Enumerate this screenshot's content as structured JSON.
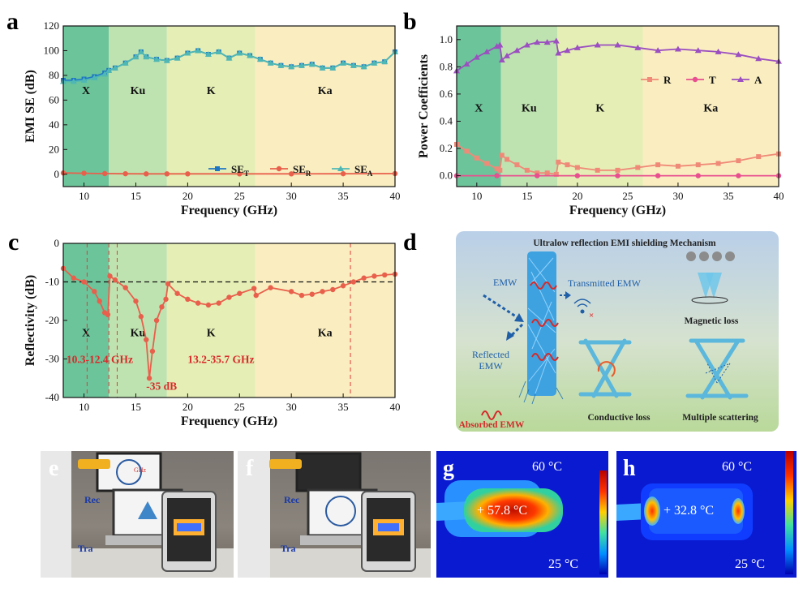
{
  "panel_letters": {
    "a": "a",
    "b": "b",
    "c": "c",
    "d": "d",
    "e": "e",
    "f": "f",
    "g": "g",
    "h": "h"
  },
  "chart_data": [
    {
      "id": "a",
      "type": "line",
      "xlabel": "Frequency (GHz)",
      "ylabel": "EMI SE (dB)",
      "xlim": [
        8,
        40
      ],
      "ylim": [
        -10,
        120
      ],
      "xticks": [
        10,
        15,
        20,
        25,
        30,
        35,
        40
      ],
      "yticks": [
        0,
        20,
        40,
        60,
        80,
        100,
        120
      ],
      "bands": [
        {
          "name": "X",
          "from": 8,
          "to": 12.4,
          "color": "#6cc49a"
        },
        {
          "name": "Ku",
          "from": 12.4,
          "to": 18,
          "color": "#bfe3b0"
        },
        {
          "name": "K",
          "from": 18,
          "to": 26.5,
          "color": "#e4eeb5"
        },
        {
          "name": "Ka",
          "from": 26.5,
          "to": 40,
          "color": "#faeec0"
        }
      ],
      "band_label_y": 68,
      "legend": {
        "position": "bottom-right",
        "items": [
          {
            "base": "SE",
            "sub": "T",
            "color": "#1f77c4",
            "marker": "square"
          },
          {
            "base": "SE",
            "sub": "R",
            "color": "#e8604c",
            "marker": "circle"
          },
          {
            "base": "SE",
            "sub": "A",
            "color": "#4fb8b4",
            "marker": "triangle"
          }
        ]
      },
      "series": [
        {
          "name": "SE_T",
          "color": "#1f77c4",
          "x": [
            8,
            9,
            10,
            11,
            12,
            12.4,
            13,
            14,
            15,
            15.5,
            16,
            17,
            18,
            19,
            20,
            21,
            22,
            23,
            24,
            25,
            26,
            27,
            28,
            29,
            30,
            31,
            32,
            33,
            34,
            35,
            36,
            37,
            38,
            39,
            40
          ],
          "y": [
            76,
            76,
            77,
            79,
            82,
            84,
            86,
            90,
            95,
            99,
            95,
            93,
            92,
            94,
            98,
            100,
            97,
            99,
            94,
            98,
            96,
            93,
            90,
            88,
            87,
            88,
            89,
            86,
            86,
            90,
            88,
            87,
            90,
            91,
            99
          ]
        },
        {
          "name": "SE_R",
          "color": "#e8604c",
          "x": [
            8,
            10,
            12,
            14,
            16,
            18,
            20,
            25,
            30,
            35,
            40
          ],
          "y": [
            1,
            0.8,
            0.5,
            0.4,
            0.3,
            0.3,
            0.3,
            0.3,
            0.3,
            0.4,
            0.5
          ]
        },
        {
          "name": "SE_A",
          "color": "#4fb8b4",
          "x": [
            8,
            9,
            10,
            11,
            12,
            12.4,
            13,
            14,
            15,
            15.5,
            16,
            17,
            18,
            19,
            20,
            21,
            22,
            23,
            24,
            25,
            26,
            27,
            28,
            29,
            30,
            31,
            32,
            33,
            34,
            35,
            36,
            37,
            38,
            39,
            40
          ],
          "y": [
            75,
            75,
            76,
            78,
            81,
            84,
            86,
            90,
            95,
            99,
            95,
            93,
            92,
            94,
            98,
            100,
            97,
            99,
            94,
            98,
            96,
            93,
            90,
            88,
            87,
            88,
            89,
            86,
            86,
            90,
            88,
            87,
            90,
            91,
            99
          ]
        }
      ]
    },
    {
      "id": "b",
      "type": "line",
      "xlabel": "Frequency (GHz)",
      "ylabel": "Power Coefficients",
      "xlim": [
        8,
        40
      ],
      "ylim": [
        -0.08,
        1.1
      ],
      "xticks": [
        10,
        15,
        20,
        25,
        30,
        35,
        40
      ],
      "yticks": [
        0.0,
        0.2,
        0.4,
        0.6,
        0.8,
        1.0
      ],
      "yformat": 1,
      "bands": [
        {
          "name": "X",
          "from": 8,
          "to": 12.4,
          "color": "#6cc49a"
        },
        {
          "name": "Ku",
          "from": 12.4,
          "to": 18,
          "color": "#bfe3b0"
        },
        {
          "name": "K",
          "from": 18,
          "to": 26.5,
          "color": "#e4eeb5"
        },
        {
          "name": "Ka",
          "from": 26.5,
          "to": 40,
          "color": "#faeec0"
        }
      ],
      "band_label_y": 0.5,
      "legend": {
        "position": "middle-right",
        "items": [
          {
            "base": "R",
            "sub": "",
            "color": "#f08a78",
            "marker": "square"
          },
          {
            "base": "T",
            "sub": "",
            "color": "#e84f8f",
            "marker": "circle"
          },
          {
            "base": "A",
            "sub": "",
            "color": "#9b4fc0",
            "marker": "triangle"
          }
        ]
      },
      "series": [
        {
          "name": "R",
          "color": "#f08a78",
          "x": [
            8,
            9,
            10,
            11,
            12,
            12.3,
            12.5,
            13,
            14,
            15,
            16,
            17,
            17.9,
            18.1,
            19,
            20,
            22,
            24,
            26,
            28,
            30,
            32,
            34,
            36,
            38,
            40
          ],
          "y": [
            0.23,
            0.18,
            0.13,
            0.09,
            0.05,
            0.04,
            0.15,
            0.12,
            0.08,
            0.04,
            0.02,
            0.02,
            0.01,
            0.1,
            0.08,
            0.06,
            0.04,
            0.04,
            0.06,
            0.08,
            0.07,
            0.08,
            0.09,
            0.11,
            0.14,
            0.16
          ]
        },
        {
          "name": "T",
          "color": "#e84f8f",
          "x": [
            8,
            12,
            16,
            20,
            24,
            28,
            32,
            36,
            40
          ],
          "y": [
            0.0,
            0.0,
            0.0,
            0.0,
            0.0,
            0.0,
            0.0,
            0.0,
            0.0
          ]
        },
        {
          "name": "A",
          "color": "#9b4fc0",
          "x": [
            8,
            9,
            10,
            11,
            12,
            12.3,
            12.5,
            13,
            14,
            15,
            16,
            17,
            17.9,
            18.1,
            19,
            20,
            22,
            24,
            26,
            28,
            30,
            32,
            34,
            36,
            38,
            40
          ],
          "y": [
            0.77,
            0.82,
            0.87,
            0.91,
            0.95,
            0.96,
            0.85,
            0.88,
            0.92,
            0.96,
            0.98,
            0.98,
            0.99,
            0.9,
            0.92,
            0.94,
            0.96,
            0.96,
            0.94,
            0.92,
            0.93,
            0.92,
            0.91,
            0.89,
            0.86,
            0.84
          ]
        }
      ]
    },
    {
      "id": "c",
      "type": "line",
      "xlabel": "Frequency (GHz)",
      "ylabel": "Reflectivity (dB)",
      "xlim": [
        8,
        40
      ],
      "ylim": [
        -40,
        0
      ],
      "xticks": [
        10,
        15,
        20,
        25,
        30,
        35,
        40
      ],
      "yticks": [
        0,
        -10,
        -20,
        -30,
        -40
      ],
      "bands": [
        {
          "name": "X",
          "from": 8,
          "to": 12.4,
          "color": "#6cc49a"
        },
        {
          "name": "Ku",
          "from": 12.4,
          "to": 18,
          "color": "#bfe3b0"
        },
        {
          "name": "K",
          "from": 18,
          "to": 26.5,
          "color": "#e4eeb5"
        },
        {
          "name": "Ka",
          "from": 26.5,
          "to": 40,
          "color": "#faeec0"
        }
      ],
      "band_label_y": -23,
      "threshold": -10,
      "vlines": [
        10.3,
        12.4,
        13.2,
        35.7
      ],
      "annotations": [
        {
          "text": "10.3-12.4 GHz",
          "x": 8.3,
          "y": -31
        },
        {
          "text": "13.2-35.7 GHz",
          "x": 20.0,
          "y": -31
        },
        {
          "text": "-35 dB",
          "x": 16.0,
          "y": -38
        }
      ],
      "series": [
        {
          "name": "Reflectivity",
          "color": "#e8604c",
          "x": [
            8,
            9,
            10,
            11,
            11.5,
            12,
            12.3,
            12.5,
            13,
            14,
            15,
            15.5,
            16,
            16.3,
            16.6,
            17,
            17.5,
            17.9,
            18.1,
            19,
            20,
            21,
            22,
            23,
            24,
            25,
            26.4,
            26.6,
            28,
            30,
            31,
            32,
            33,
            34,
            35,
            36,
            37,
            38,
            39,
            40
          ],
          "y": [
            -6.5,
            -9,
            -10,
            -12.5,
            -15,
            -18,
            -18.5,
            -8.5,
            -9.5,
            -11.5,
            -15,
            -19,
            -25,
            -35,
            -28,
            -20,
            -16.5,
            -14.5,
            -10.5,
            -13,
            -14.5,
            -15.5,
            -16,
            -15.5,
            -14,
            -13,
            -11.7,
            -13.5,
            -11.5,
            -12.5,
            -13.5,
            -13.2,
            -12.5,
            -12,
            -11,
            -10,
            -9,
            -8.5,
            -8.2,
            -8
          ]
        }
      ]
    }
  ],
  "mechanism": {
    "title": "Ultralow reflection EMI shielding Mechanism",
    "emw": "EMW",
    "transmitted": "Transmitted EMW",
    "reflected_line1": "Reflected",
    "reflected_line2": "EMW",
    "absorbed": "Absorbed EMW",
    "magnetic": "Magnetic loss",
    "conductive": "Conductive loss",
    "scattering": "Multiple scattering"
  },
  "photo_e": {
    "rec": "Rec",
    "tra": "Tra",
    "screen_text": "GHz"
  },
  "photo_f": {
    "rec": "Rec",
    "tra": "Tra"
  },
  "thermal_g": {
    "temp": "+ 57.8 °C",
    "max": "60  °C",
    "min": "25  °C"
  },
  "thermal_h": {
    "temp": "+ 32.8 °C",
    "max": "60  °C",
    "min": "25  °C"
  }
}
